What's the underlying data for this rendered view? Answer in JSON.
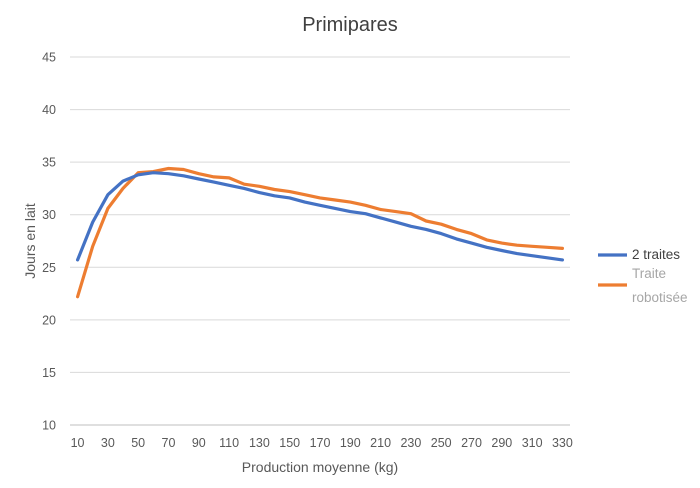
{
  "chart_data": {
    "type": "line",
    "title": "Primipares",
    "xlabel": "Production moyenne (kg)",
    "ylabel": "Jours en lait",
    "ylim": [
      10,
      45
    ],
    "yticks": [
      10,
      15,
      20,
      25,
      30,
      35,
      40,
      45
    ],
    "xticks": [
      10,
      30,
      50,
      70,
      90,
      110,
      130,
      150,
      170,
      190,
      210,
      230,
      250,
      270,
      290,
      310,
      330
    ],
    "x": [
      10,
      20,
      30,
      40,
      50,
      60,
      70,
      80,
      90,
      100,
      110,
      120,
      130,
      140,
      150,
      160,
      170,
      180,
      190,
      200,
      210,
      220,
      230,
      240,
      250,
      260,
      270,
      280,
      290,
      300,
      310,
      320,
      330
    ],
    "grid": true,
    "legend_position": "right",
    "series": [
      {
        "name": "2 traites",
        "color": "#4472c4",
        "values": [
          25.7,
          29.3,
          31.9,
          33.2,
          33.8,
          34.0,
          33.9,
          33.7,
          33.4,
          33.1,
          32.8,
          32.5,
          32.1,
          31.8,
          31.6,
          31.2,
          30.9,
          30.6,
          30.3,
          30.1,
          29.7,
          29.3,
          28.9,
          28.6,
          28.2,
          27.7,
          27.3,
          26.9,
          26.6,
          26.3,
          26.1,
          25.9,
          25.7
        ]
      },
      {
        "name": "Traite robotisée",
        "color": "#ed7d31",
        "values": [
          22.2,
          27.0,
          30.6,
          32.5,
          34.0,
          34.1,
          34.4,
          34.3,
          33.9,
          33.6,
          33.5,
          32.9,
          32.7,
          32.4,
          32.2,
          31.9,
          31.6,
          31.4,
          31.2,
          30.9,
          30.5,
          30.3,
          30.1,
          29.4,
          29.1,
          28.6,
          28.2,
          27.6,
          27.3,
          27.1,
          27.0,
          26.9,
          26.8
        ]
      }
    ]
  },
  "legend": [
    {
      "line1": "2 traites",
      "line2": "",
      "color": "#4472c4",
      "text_color": "#404040"
    },
    {
      "line1": "Traite",
      "line2": "robotisée",
      "color": "#ed7d31",
      "text_color": "#a6a6a6"
    }
  ]
}
